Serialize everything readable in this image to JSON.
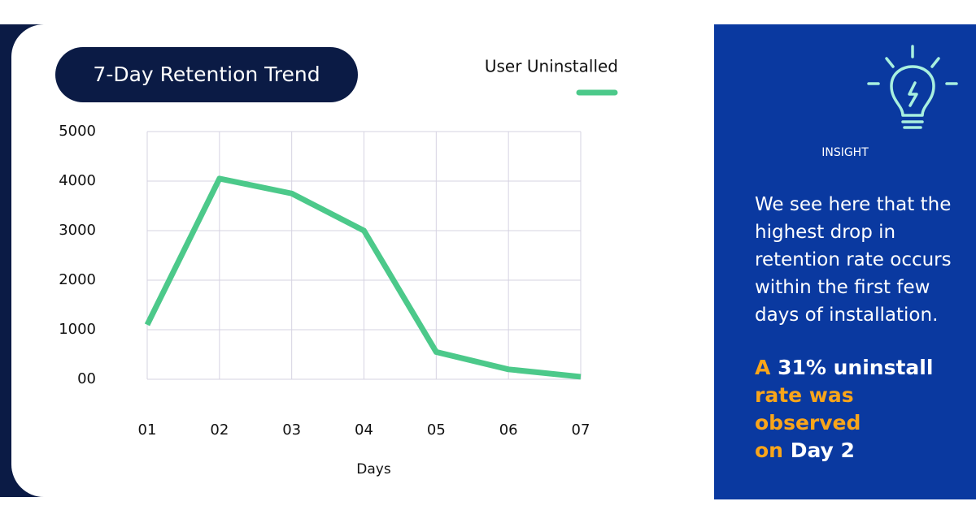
{
  "chart_data": {
    "type": "line",
    "title": "7-Day Retention Trend",
    "categories": [
      "01",
      "02",
      "03",
      "04",
      "05",
      "06",
      "07"
    ],
    "series": [
      {
        "name": "User Uninstalled",
        "color": "#4cc98a",
        "values": [
          1100,
          4050,
          3750,
          3000,
          550,
          200,
          50
        ]
      }
    ],
    "ylim": [
      0,
      5000
    ],
    "yticks": [
      {
        "value": 0,
        "label": "00"
      },
      1000,
      2000,
      3000,
      4000,
      5000
    ],
    "xlabel": "Days",
    "grid": true
  },
  "insight": {
    "label": "INSIGHT",
    "text_lines": [
      "We see here that the",
      "highest drop in",
      "retention rate occurs",
      "within the first few",
      "days of installation."
    ],
    "highlight_lines": [
      [
        "A",
        "31%  uninstall"
      ],
      [
        "rate was"
      ],
      [
        "observed"
      ],
      [
        "on",
        "Day 2"
      ]
    ]
  }
}
